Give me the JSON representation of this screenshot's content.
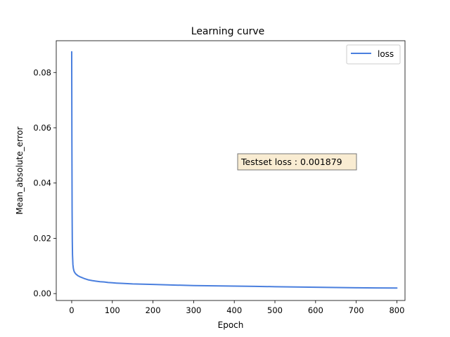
{
  "chart_data": {
    "type": "line",
    "title": "Learning curve",
    "xlabel": "Epoch",
    "ylabel": "Mean_absolute_error",
    "xlim": [
      -38,
      820
    ],
    "ylim": [
      -0.0025,
      0.0915
    ],
    "xticks": [
      0,
      100,
      200,
      300,
      400,
      500,
      600,
      700,
      800
    ],
    "yticks": [
      0.0,
      0.02,
      0.04,
      0.06,
      0.08
    ],
    "ytick_labels": [
      "0.00",
      "0.02",
      "0.04",
      "0.06",
      "0.08"
    ],
    "grid": false,
    "legend": {
      "placement": "top-right"
    },
    "series": [
      {
        "name": "loss",
        "color": "#4a7fde",
        "x": [
          0,
          0.5,
          1,
          1.5,
          2,
          3,
          4,
          5,
          6,
          8,
          10,
          15,
          20,
          25,
          30,
          40,
          50,
          60,
          70,
          80,
          90,
          100,
          110,
          125,
          150,
          175,
          200,
          250,
          300,
          350,
          400,
          450,
          500,
          550,
          600,
          650,
          700,
          750,
          800
        ],
        "y": [
          0.0875,
          0.055,
          0.03,
          0.019,
          0.014,
          0.0105,
          0.0092,
          0.0085,
          0.008,
          0.0075,
          0.0071,
          0.0065,
          0.0061,
          0.0058,
          0.0055,
          0.005,
          0.0047,
          0.0045,
          0.0043,
          0.0042,
          0.004,
          0.0039,
          0.0038,
          0.0037,
          0.0035,
          0.0034,
          0.0033,
          0.0031,
          0.0029,
          0.0028,
          0.0027,
          0.0026,
          0.0025,
          0.0024,
          0.0023,
          0.0022,
          0.0021,
          0.00205,
          0.002
        ]
      }
    ],
    "annotation": {
      "text": "Testset loss : 0.001879",
      "face_color": "#f9ecd2",
      "edge_color": "#777777"
    }
  }
}
